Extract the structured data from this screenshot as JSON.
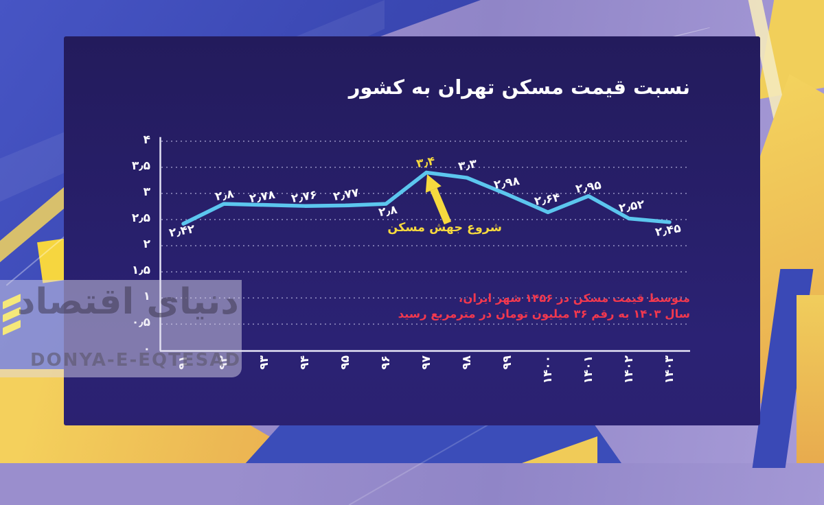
{
  "title": "نسبت قیمت مسکن تهران به کشور",
  "watermark": {
    "persian": "دنیای اقتصاد",
    "latin": "DONYA-E-EQTESAD"
  },
  "note": {
    "line1": "متوسط قیمت مسکن در ۱۴۵۶ شهر ایران،",
    "line2": "سال ۱۴۰۳ به رقم ۳۶ میلیون تومان در مترمربع رسید"
  },
  "colors": {
    "line_color": "#5cc6ee",
    "accent_yellow": "#f6d93e",
    "note_red": "#f2384e",
    "grid_color": "#aaa7d4",
    "panel_bg": "#2b2274",
    "bg_blue": "#3a47b2",
    "bg_purple": "#9a8ecd",
    "bg_yellow": "#f1cf5a"
  },
  "chart_data": {
    "type": "line",
    "title": "نسبت قیمت مسکن تهران به کشور",
    "categories": [
      "۹۱",
      "۹۲",
      "۹۳",
      "۹۴",
      "۹۵",
      "۹۶",
      "۹۷",
      "۹۸",
      "۹۹",
      "۱۴۰۰",
      "۱۴۰۱",
      "۱۴۰۲",
      "۱۴۰۳"
    ],
    "values": [
      2.42,
      2.8,
      2.78,
      2.76,
      2.77,
      2.8,
      3.4,
      3.3,
      2.98,
      2.64,
      2.95,
      2.52,
      2.45
    ],
    "point_labels": [
      "۲٫۴۲",
      "۲٫۸",
      "۲٫۷۸",
      "۲٫۷۶",
      "۲٫۷۷",
      "۲٫۸",
      "۳٫۴",
      "۳٫۳",
      "۲٫۹۸",
      "۲٫۶۴",
      "۲٫۹۵",
      "۲٫۵۲",
      "۲٫۴۵"
    ],
    "highlight_index": 6,
    "ylim": [
      0,
      4
    ],
    "yticks": [
      {
        "value": 4,
        "label": "۴"
      },
      {
        "value": 3.5,
        "label": "۳٫۵"
      },
      {
        "value": 3,
        "label": "۳"
      },
      {
        "value": 2.5,
        "label": "۲٫۵"
      },
      {
        "value": 2,
        "label": "۲"
      },
      {
        "value": 1.5,
        "label": "۱٫۵"
      },
      {
        "value": 1,
        "label": "۱"
      },
      {
        "value": 0.5,
        "label": "۰٫۵"
      },
      {
        "value": 0,
        "label": "۰"
      }
    ],
    "grid": "horizontal-dotted",
    "legend": "none",
    "xlabel": "",
    "ylabel": "",
    "annotation": {
      "text": "شروع جهش مسکن",
      "target_category": "۹۷",
      "target_value": 3.4
    }
  }
}
